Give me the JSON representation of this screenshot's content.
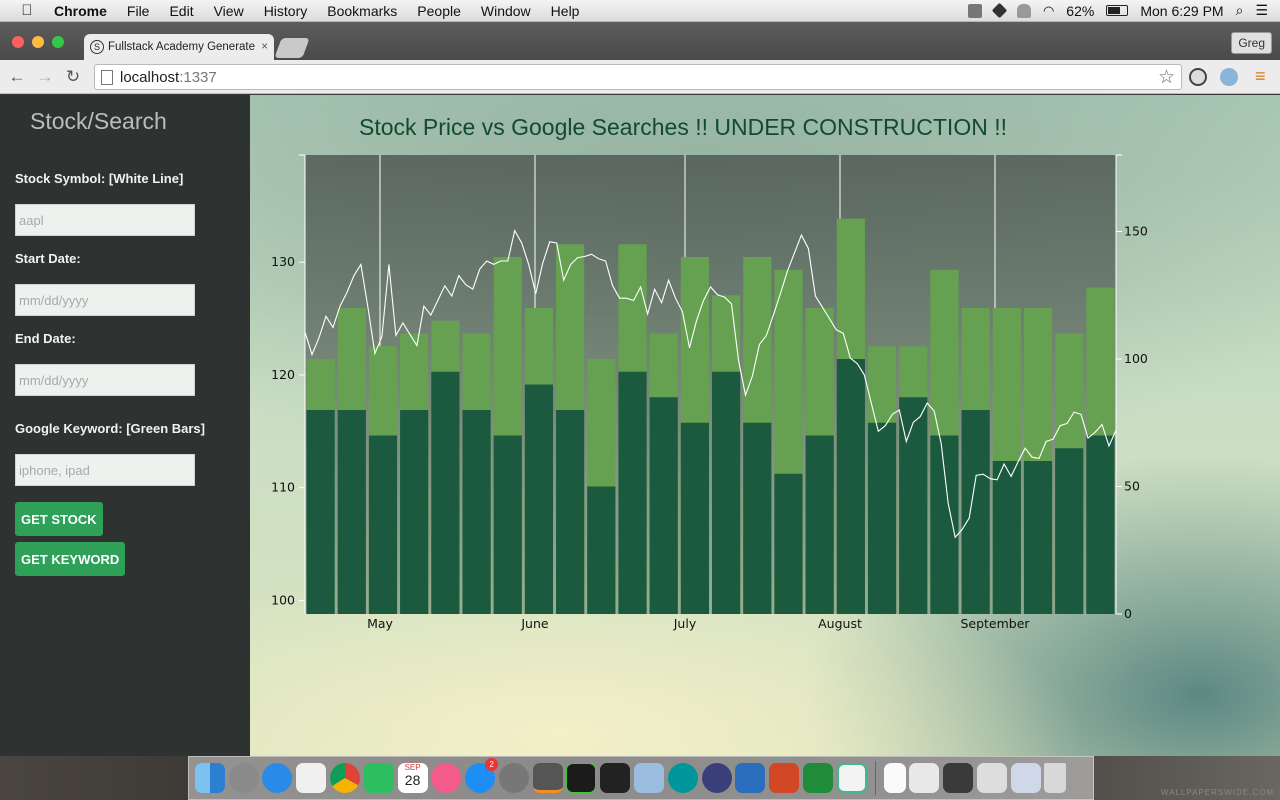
{
  "menubar": {
    "app_name": "Chrome",
    "items": [
      "File",
      "Edit",
      "View",
      "History",
      "Bookmarks",
      "People",
      "Window",
      "Help"
    ],
    "battery": "62%",
    "clock": "Mon 6:29 PM"
  },
  "browser": {
    "tab_title": "Fullstack Academy Generate",
    "tab_favicon": "S",
    "tab_close": "×",
    "user_label": "Greg",
    "url_host": "localhost",
    "url_port": ":1337"
  },
  "sidebar": {
    "brand": "Stock/Search",
    "stock_label": "Stock Symbol: [White Line]",
    "stock_placeholder": "aapl",
    "start_label": "Start Date:",
    "start_placeholder": "mm/dd/yyyy",
    "end_label": "End Date:",
    "end_placeholder": "mm/dd/yyyy",
    "keyword_label": "Google Keyword: [Green Bars]",
    "keyword_placeholder": "iphone, ipad",
    "get_stock_label": "GET STOCK",
    "get_keyword_label": "GET KEYWORD"
  },
  "chart_data": {
    "type": "bar",
    "title": "Stock Price vs Google Searches !! UNDER CONSTRUCTION !!",
    "xlabel": "",
    "ylabel": "",
    "x_ticks": [
      "May",
      "June",
      "July",
      "August",
      "September"
    ],
    "y_left": {
      "ticks": [
        100,
        110,
        120,
        130
      ],
      "range": [
        98.8,
        139.5
      ]
    },
    "y_right": {
      "ticks": [
        0,
        50,
        100,
        150
      ],
      "range": [
        0,
        180
      ]
    },
    "series": [
      {
        "name": "",
        "axis": "right",
        "values": [
          100,
          120,
          105,
          110,
          115,
          110,
          140,
          120,
          145,
          100,
          145,
          110,
          140,
          125,
          140,
          135,
          120,
          155,
          105,
          105,
          135,
          120,
          120,
          120,
          110,
          128
        ],
        "color": "#65a150"
      },
      {
        "name": "",
        "axis": "right",
        "values": [
          80,
          80,
          70,
          80,
          95,
          80,
          70,
          90,
          80,
          50,
          95,
          85,
          75,
          95,
          75,
          55,
          70,
          100,
          75,
          85,
          70,
          80,
          60,
          60,
          65,
          70
        ],
        "color": "#1b5a3e"
      },
      {
        "name": "",
        "axis": "left",
        "color": "#ffffff",
        "values": [
          123.8,
          121.8,
          123.3,
          125.2,
          124.2,
          126.1,
          127.3,
          128.8,
          129.8,
          126.0,
          121.9,
          123.4,
          129.8,
          123.5,
          124.6,
          123.6,
          122.6,
          126.1,
          125.3,
          126.6,
          127.9,
          127.0,
          128.8,
          128.0,
          127.6,
          129.4,
          130.1,
          129.8,
          130.1,
          130.1,
          132.8,
          131.7,
          129.8,
          127.2,
          129.9,
          131.8,
          131.7,
          128.4,
          129.8,
          130.4,
          130.5,
          130.7,
          130.3,
          130.1,
          127.9,
          126.8,
          126.8,
          126.6,
          127.8,
          125.4,
          127.6,
          126.4,
          128.4,
          126.8,
          125.6,
          122.4,
          124.8,
          126.6,
          127.8,
          127.1,
          126.9,
          126.3,
          121.3,
          118.2,
          119.9,
          122.7,
          123.5,
          125.3,
          127.2,
          129.2,
          130.8,
          132.4,
          131.2,
          127.0,
          126.0,
          125.0,
          124.0,
          123.7,
          121.5,
          121.0,
          120.0,
          117.5,
          115.0,
          115.5,
          116.5,
          116.9,
          114.1,
          115.8,
          116.3,
          117.5,
          116.8,
          113.9,
          108.6,
          105.6,
          106.3,
          107.3,
          111.1,
          111.2,
          110.8,
          110.7,
          112.1,
          111.0,
          112.3,
          113.5,
          112.7,
          112.6,
          114.1,
          114.3,
          115.5,
          115.7,
          116.7,
          116.5,
          114.4,
          114.9,
          115.6,
          113.7,
          115.1
        ]
      }
    ]
  },
  "dock": {
    "calendar_date": "28",
    "calendar_month": "SEP",
    "appstore_badge": "2",
    "watermark": "WALLPAPERSWIDE.COM"
  }
}
